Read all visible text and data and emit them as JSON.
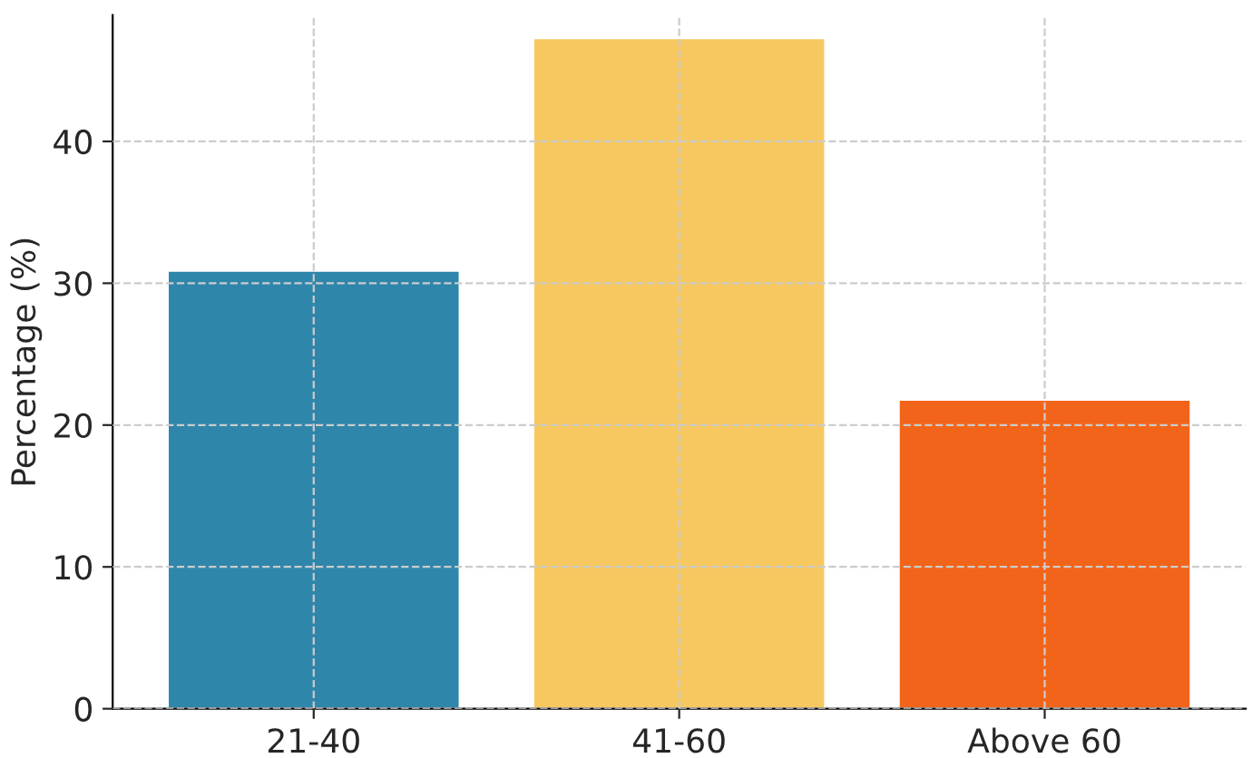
{
  "chart_data": {
    "type": "bar",
    "ylabel": "Percentage (%)",
    "categories": [
      "21-40",
      "41-60",
      "Above 60"
    ],
    "values": [
      30.9,
      47.3,
      21.8
    ],
    "colors": [
      "#2e86ab",
      "#f6c85f",
      "#f26419"
    ],
    "ylim": [
      0,
      48.9
    ],
    "yticks": [
      0,
      10,
      20,
      30,
      40
    ],
    "grid": true
  }
}
